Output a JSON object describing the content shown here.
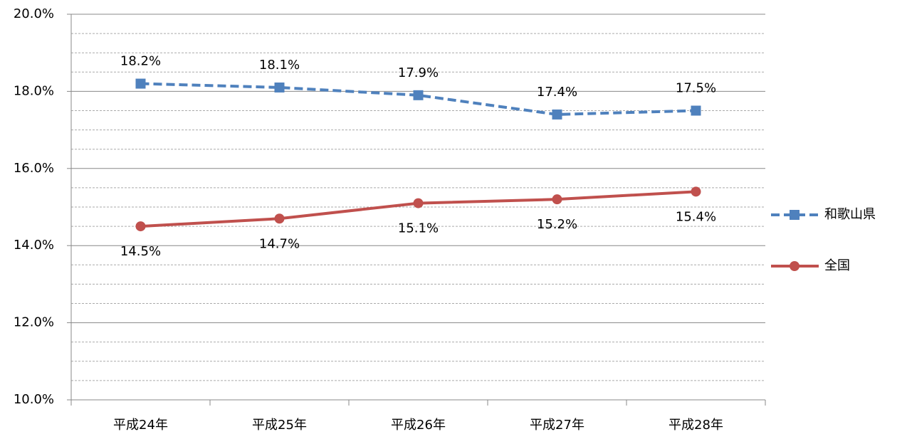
{
  "chart_data": {
    "type": "line",
    "categories": [
      "平成24年",
      "平成25年",
      "平成26年",
      "平成27年",
      "平成28年"
    ],
    "series": [
      {
        "name": "和歌山県",
        "color": "#4f81bd",
        "dash": true,
        "marker": "square",
        "values": [
          18.2,
          18.1,
          17.9,
          17.4,
          17.5
        ],
        "value_labels": [
          "18.2%",
          "18.1%",
          "17.9%",
          "17.4%",
          "17.5%"
        ],
        "label_side": "above"
      },
      {
        "name": "全国",
        "color": "#c0504d",
        "dash": false,
        "marker": "circle",
        "values": [
          14.5,
          14.7,
          15.1,
          15.2,
          15.4
        ],
        "value_labels": [
          "14.5%",
          "14.7%",
          "15.1%",
          "15.2%",
          "15.4%"
        ],
        "label_side": "below"
      }
    ],
    "ylim": [
      10,
      20
    ],
    "yticks": [
      {
        "value": 10,
        "label": "10.0%"
      },
      {
        "value": 12,
        "label": "12.0%"
      },
      {
        "value": 14,
        "label": "14.0%"
      },
      {
        "value": 16,
        "label": "16.0%"
      },
      {
        "value": 18,
        "label": "18.0%"
      },
      {
        "value": 20,
        "label": "20.0%"
      }
    ],
    "minor_yticks": [
      10.5,
      11,
      11.5,
      12.5,
      13,
      13.5,
      14.5,
      15,
      15.5,
      16.5,
      17,
      17.5,
      18.5,
      19,
      19.5
    ],
    "grid": true,
    "legend": "right"
  }
}
